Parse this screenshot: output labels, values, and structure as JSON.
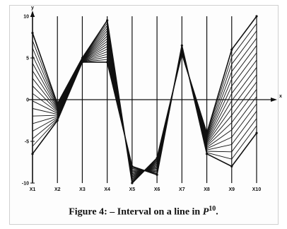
{
  "chart_data": {
    "type": "line",
    "ylabel": "y",
    "xlabel": "x",
    "ylim": [
      -10,
      10
    ],
    "y_ticks": [
      "10",
      "5",
      "0",
      "-5",
      "-10"
    ],
    "y_tick_values": [
      10,
      5,
      0,
      -5,
      -10
    ],
    "categories": [
      "x1",
      "x2",
      "x3",
      "x4",
      "x5",
      "x6",
      "x7",
      "x8",
      "x9",
      "x10"
    ],
    "category_display": [
      "X1",
      "X2",
      "X3",
      "X4",
      "X5",
      "X6",
      "X7",
      "X8",
      "X9",
      "X10"
    ],
    "series": [
      {
        "values": [
          8,
          -0.5,
          5,
          9.5,
          -10,
          -7,
          5.5,
          -4,
          6,
          10
        ]
      },
      {
        "values": [
          -6.5,
          -2.5,
          4.5,
          4.5,
          -8,
          -9,
          6.5,
          -6.5,
          -8,
          -4
        ]
      }
    ],
    "interpolation_steps": 16,
    "line_color": "#111111",
    "grid": false
  },
  "caption": {
    "prefix": "Figure 4: – Interval on a line in ",
    "symbol": "P",
    "superscript": "10",
    "suffix": "."
  }
}
